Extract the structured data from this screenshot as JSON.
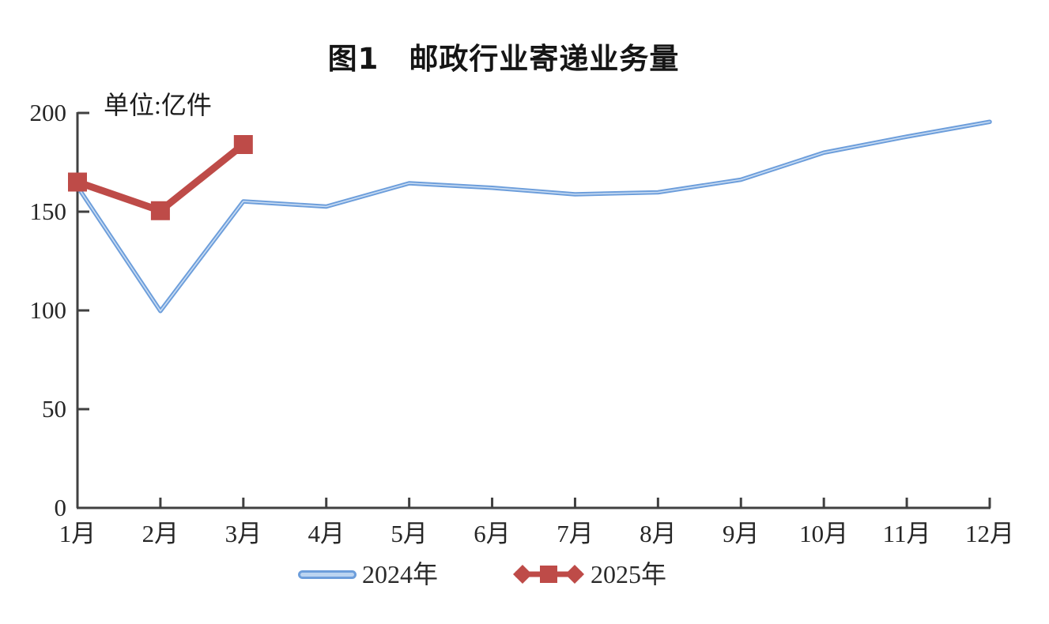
{
  "chart_data": {
    "type": "line",
    "title": "图1　邮政行业寄递业务量",
    "unit_label": "单位:亿件",
    "categories": [
      "1月",
      "2月",
      "3月",
      "4月",
      "5月",
      "6月",
      "7月",
      "8月",
      "9月",
      "10月",
      "11月",
      "12月"
    ],
    "series": [
      {
        "name": "2024年",
        "color": "#6D9EDB",
        "highlight_color": "#CADDF3",
        "marker": "none",
        "values": [
          162.7,
          99.7,
          155.2,
          152.6,
          164.4,
          162.1,
          158.8,
          159.8,
          166.2,
          179.9,
          188.0,
          195.5
        ]
      },
      {
        "name": "2025年",
        "color": "#BE4B48",
        "marker": "square",
        "values": [
          165,
          150.5,
          184
        ]
      }
    ],
    "xlabel": "",
    "ylabel": "",
    "ylim": [
      0,
      200
    ],
    "yticks": [
      0,
      50,
      100,
      150,
      200
    ],
    "grid": false,
    "legend_position": "bottom",
    "axis_color": "#404040",
    "text_color": "#262626"
  }
}
